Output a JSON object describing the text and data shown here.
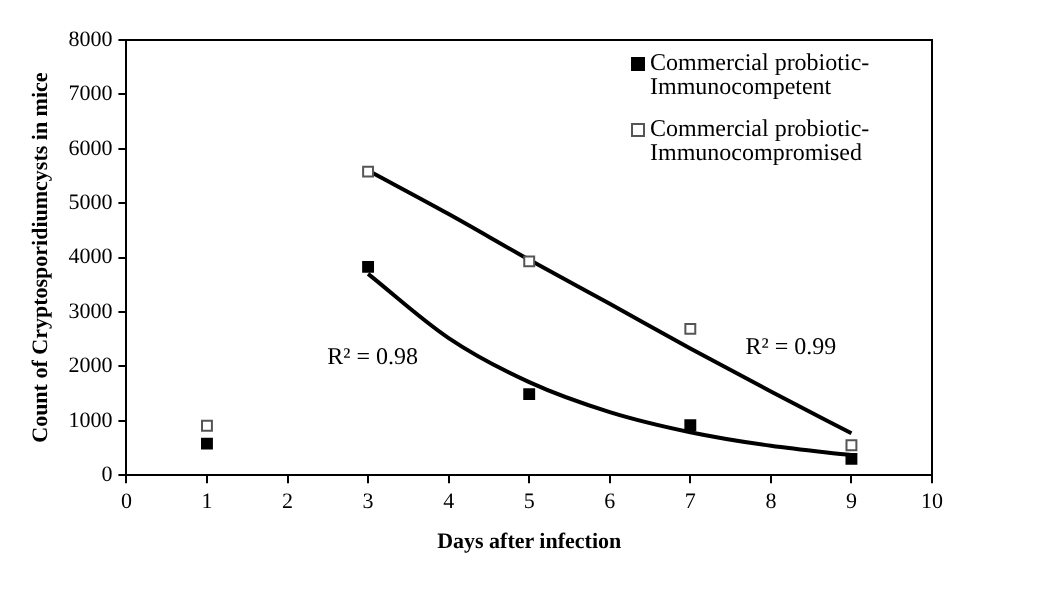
{
  "chart_data": {
    "type": "scatter",
    "xlabel": "Days after infection",
    "ylabel": "Count of Cryptosporidiumcysts in mice",
    "xlim": [
      0,
      10
    ],
    "xticks": [
      0,
      1,
      2,
      3,
      4,
      5,
      6,
      7,
      8,
      9,
      10
    ],
    "ylim": [
      0,
      8000
    ],
    "yticks": [
      0,
      1000,
      2000,
      3000,
      4000,
      5000,
      6000,
      7000,
      8000
    ],
    "marker": "square",
    "legend": "top right",
    "grid": false,
    "series": [
      {
        "name": "Commercial probiotic-Immunocompetent",
        "color": "#000000",
        "x": [
          1,
          3,
          5,
          7,
          9
        ],
        "values": [
          580,
          3830,
          1490,
          920,
          300
        ]
      },
      {
        "name": "Commercial probiotic-Immunocompromised",
        "color": "#ffffff",
        "x": [
          1,
          3,
          5,
          7,
          9
        ],
        "values": [
          910,
          5580,
          3930,
          2690,
          550
        ]
      },
      {
        "type": "line",
        "color": "#000000",
        "marker": "none",
        "x": [
          3,
          4,
          5,
          6,
          7,
          8,
          9
        ],
        "values": [
          3700,
          2520,
          1710,
          1160,
          790,
          540,
          370
        ]
      },
      {
        "type": "line",
        "color": "#000000",
        "marker": "none",
        "x": [
          3,
          4,
          5,
          6,
          7,
          8,
          9
        ],
        "values": [
          5600,
          4800,
          3960,
          3150,
          2330,
          1540,
          770
        ]
      }
    ],
    "annotations": [
      "R² = 0.98",
      "R² = 0.99"
    ]
  }
}
